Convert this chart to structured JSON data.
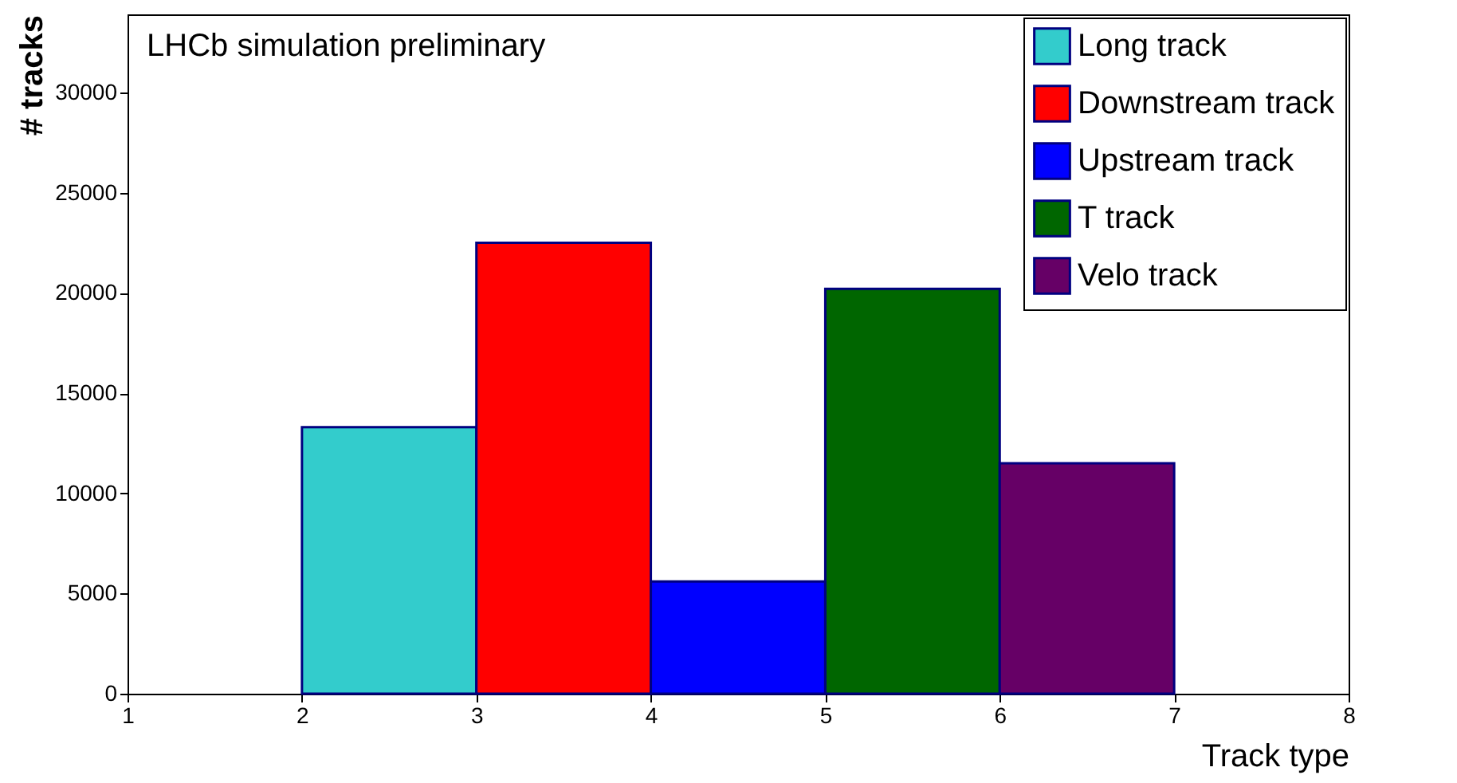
{
  "chart_data": {
    "type": "histogram",
    "xlabel": "Track type",
    "ylabel": "# tracks",
    "annotations": [
      "LHCb simulation preliminary"
    ],
    "xlim": [
      1,
      8
    ],
    "xticks": [
      1,
      2,
      3,
      4,
      5,
      6,
      7,
      8
    ],
    "ylim": [
      0,
      33900
    ],
    "yticks": [
      0,
      5000,
      10000,
      15000,
      20000,
      25000,
      30000
    ],
    "legend": "top right",
    "bins": [
      2,
      3,
      4,
      5,
      6,
      7
    ],
    "series": [
      {
        "name": "Long track",
        "color": "#33cccc",
        "values": [
          13300,
          null,
          null,
          null,
          null
        ]
      },
      {
        "name": "Downstream track",
        "color": "#ff0000",
        "values": [
          null,
          22500,
          null,
          null,
          null
        ]
      },
      {
        "name": "Upstream track",
        "color": "#0000ff",
        "values": [
          null,
          null,
          5600,
          null,
          null
        ]
      },
      {
        "name": "T track",
        "color": "#006600",
        "values": [
          null,
          null,
          null,
          20200,
          null
        ]
      },
      {
        "name": "Velo track",
        "color": "#660066",
        "values": [
          null,
          null,
          null,
          null,
          11500
        ]
      }
    ]
  }
}
